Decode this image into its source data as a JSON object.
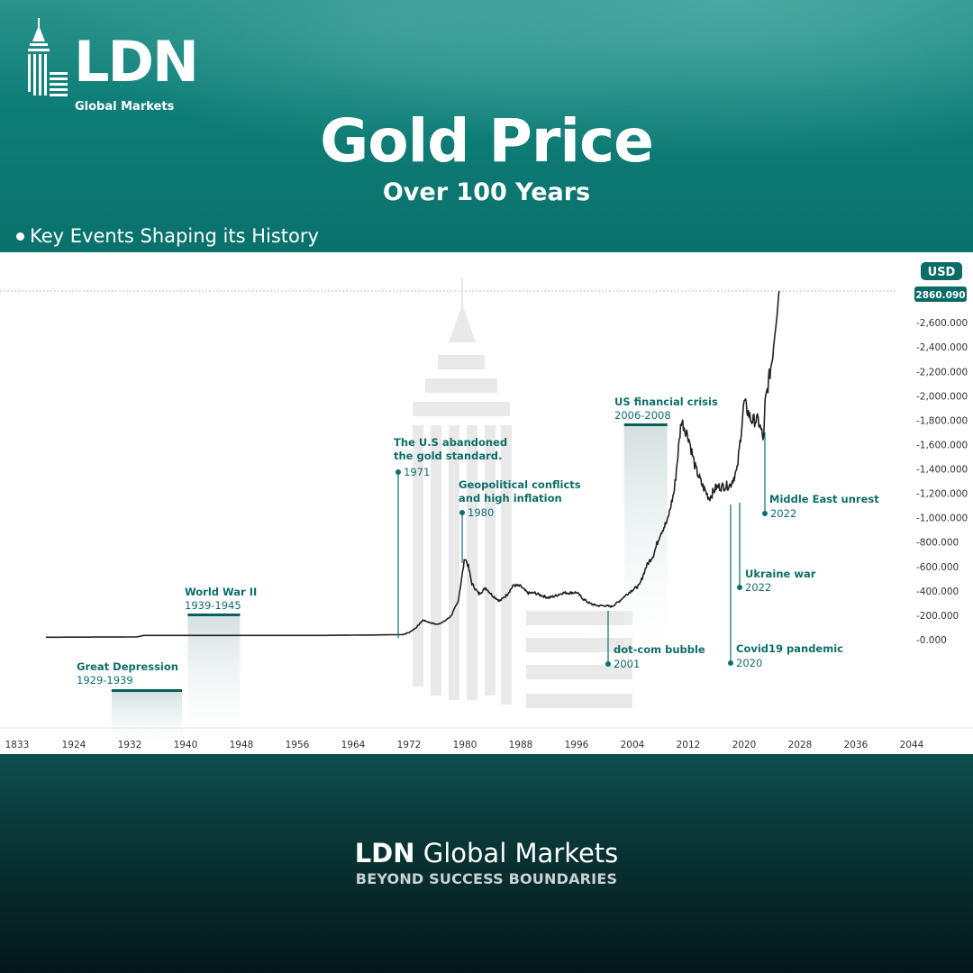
{
  "brand": {
    "logo_text": "LDN",
    "logo_sub": "Global Markets",
    "footer_name_bold": "LDN",
    "footer_name_rest": "Global Markets",
    "tagline": "BEYOND SUCCESS BOUNDARIES"
  },
  "header": {
    "title": "Gold Price",
    "subtitle": "Over 100 Years",
    "section_label": "Key Events Shaping its History"
  },
  "colors": {
    "teal": "#0b7671",
    "accent": "#0e6e69",
    "line": "#222222"
  },
  "chart_data": {
    "type": "line",
    "currency": "USD",
    "last_value_label": "2860.090",
    "x_ticks": [
      "1833",
      "1924",
      "1932",
      "1940",
      "1948",
      "1956",
      "1964",
      "1972",
      "1980",
      "1988",
      "1996",
      "2004",
      "2012",
      "2020",
      "2028",
      "2036",
      "2044"
    ],
    "y_ticks": [
      "2,600.000",
      "2,400.000",
      "2,200.000",
      "2,000.000",
      "1,800.000",
      "1,600.000",
      "1,400.000",
      "1,200.000",
      "1,000.000",
      "800.000",
      "600.000",
      "400.000",
      "200.000",
      "0.000"
    ],
    "ylim": [
      0,
      2860
    ],
    "series": [
      {
        "points": [
          [
            1920,
            20
          ],
          [
            1933,
            22
          ],
          [
            1934,
            35
          ],
          [
            1950,
            35
          ],
          [
            1960,
            35
          ],
          [
            1968,
            39
          ],
          [
            1971,
            41
          ],
          [
            1972,
            58
          ],
          [
            1973,
            98
          ],
          [
            1974,
            160
          ],
          [
            1975,
            140
          ],
          [
            1976,
            125
          ],
          [
            1977,
            148
          ],
          [
            1978,
            193
          ],
          [
            1979,
            306
          ],
          [
            1980,
            675
          ],
          [
            1980.5,
            600
          ],
          [
            1981,
            460
          ],
          [
            1982,
            375
          ],
          [
            1983,
            424
          ],
          [
            1984,
            360
          ],
          [
            1985,
            317
          ],
          [
            1986,
            368
          ],
          [
            1987,
            447
          ],
          [
            1988,
            437
          ],
          [
            1989,
            381
          ],
          [
            1990,
            383
          ],
          [
            1991,
            362
          ],
          [
            1992,
            344
          ],
          [
            1993,
            360
          ],
          [
            1994,
            384
          ],
          [
            1995,
            384
          ],
          [
            1996,
            388
          ],
          [
            1997,
            331
          ],
          [
            1998,
            294
          ],
          [
            1999,
            279
          ],
          [
            2000,
            279
          ],
          [
            2001,
            271
          ],
          [
            2002,
            310
          ],
          [
            2003,
            363
          ],
          [
            2004,
            409
          ],
          [
            2005,
            445
          ],
          [
            2006,
            604
          ],
          [
            2007,
            695
          ],
          [
            2008,
            872
          ],
          [
            2009,
            972
          ],
          [
            2010,
            1225
          ],
          [
            2011,
            1800
          ],
          [
            2012,
            1669
          ],
          [
            2013,
            1411
          ],
          [
            2014,
            1266
          ],
          [
            2015,
            1160
          ],
          [
            2016,
            1251
          ],
          [
            2017,
            1257
          ],
          [
            2018,
            1268
          ],
          [
            2019,
            1392
          ],
          [
            2020,
            1950
          ],
          [
            2021,
            1800
          ],
          [
            2022,
            1800
          ],
          [
            2022.8,
            1640
          ],
          [
            2023,
            1940
          ],
          [
            2024,
            2300
          ],
          [
            2024.5,
            2600
          ],
          [
            2025,
            2860
          ]
        ]
      }
    ],
    "events": [
      {
        "label": "Great Depression",
        "period": "1929-1939"
      },
      {
        "label": "World War II",
        "period": "1939-1945"
      },
      {
        "label": "The U.S abandoned\nthe gold standard.",
        "period": "1971"
      },
      {
        "label": "Geopolitical conflicts\nand high inflation",
        "period": "1980"
      },
      {
        "label": "dot-com bubble",
        "period": "2001"
      },
      {
        "label": "US financial crisis",
        "period": "2006-2008"
      },
      {
        "label": "Covid19 pandemic",
        "period": "2020"
      },
      {
        "label": "Ukraine war",
        "period": "2022"
      },
      {
        "label": "Middle East unrest",
        "period": "2022"
      }
    ]
  }
}
